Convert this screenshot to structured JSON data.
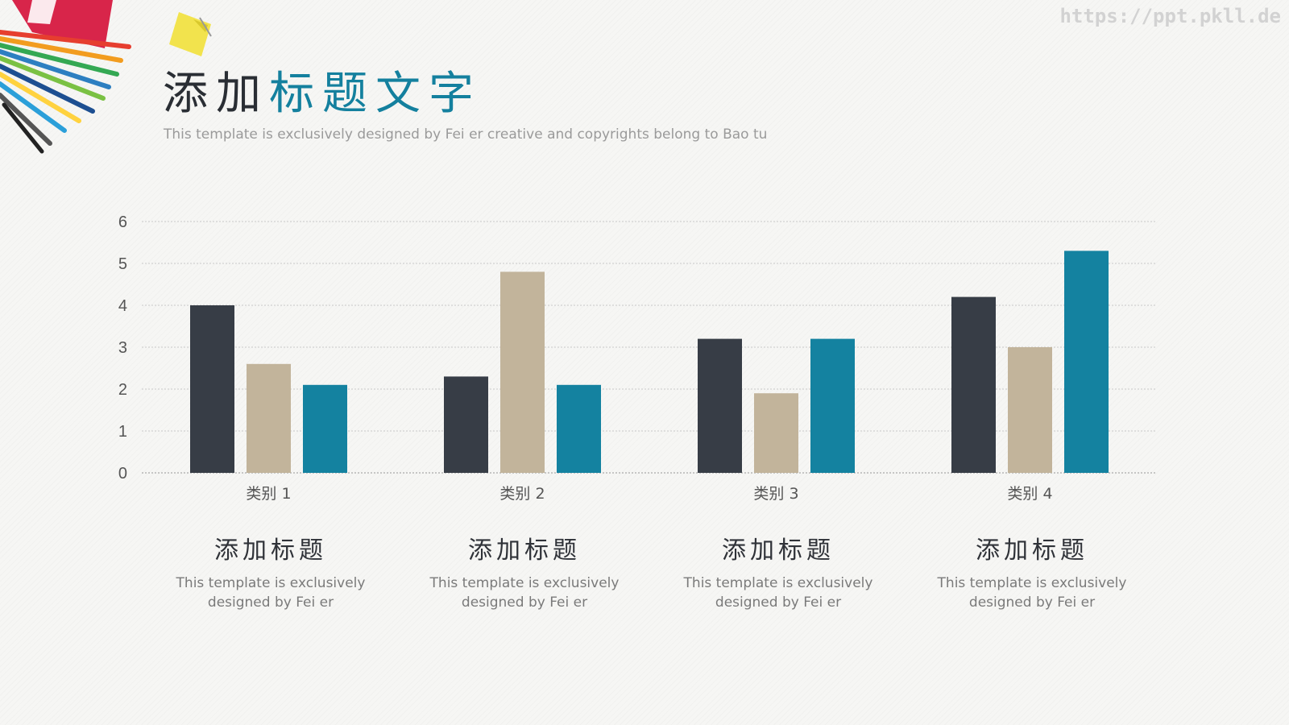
{
  "header": {
    "title_part1": "添加",
    "title_part2": "标题文字",
    "subtitle": "This template is exclusively designed by Fei er creative and copyrights belong to Bao tu",
    "watermark": "https://ppt.pkll.de"
  },
  "chart_data": {
    "type": "bar",
    "categories": [
      "类别 1",
      "类别 2",
      "类别 3",
      "类别 4"
    ],
    "series": [
      {
        "values": [
          4.0,
          2.3,
          3.2,
          4.2
        ],
        "color": "#373d46"
      },
      {
        "values": [
          2.6,
          4.8,
          1.9,
          3.0
        ],
        "color": "#c2b49b"
      },
      {
        "values": [
          2.1,
          2.1,
          3.2,
          5.3
        ],
        "color": "#1482a0"
      }
    ],
    "ylim": [
      0,
      6
    ],
    "yticks": [
      0,
      1,
      2,
      3,
      4,
      5,
      6
    ],
    "grid": true,
    "xlabel": "",
    "ylabel": ""
  },
  "captions": [
    {
      "title": "添加标题",
      "line1": "This template is exclusively",
      "line2": "designed by Fei er"
    },
    {
      "title": "添加标题",
      "line1": "This template is exclusively",
      "line2": "designed by Fei er"
    },
    {
      "title": "添加标题",
      "line1": "This template is exclusively",
      "line2": "designed by Fei er"
    },
    {
      "title": "添加标题",
      "line1": "This template is exclusively",
      "line2": "designed by Fei er"
    }
  ]
}
